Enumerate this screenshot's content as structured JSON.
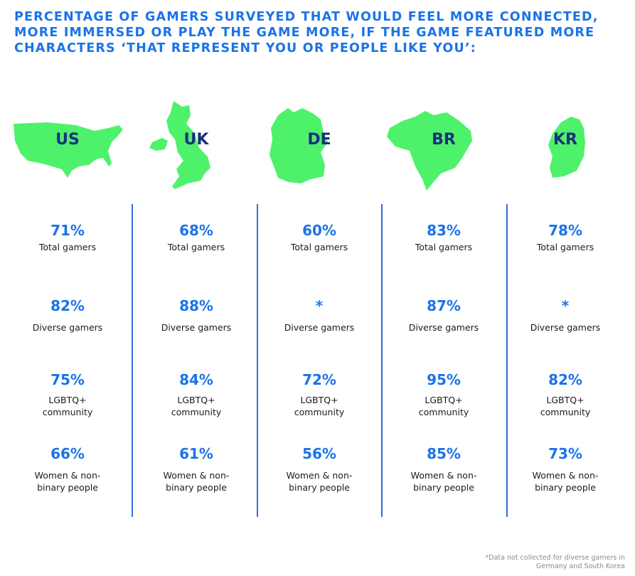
{
  "title": "PERCENTAGE OF GAMERS SURVEYED THAT WOULD FEEL MORE CONNECTED,\nMORE IMMERSED OR PLAY THE GAME MORE, IF THE GAME FEATURED MORE\nCHARACTERS ‘THAT REPRESENT YOU OR PEOPLE LIKE YOU’:",
  "map_color": "#4ef26a",
  "value_color": "#1a73e8",
  "code_color": "#18307c",
  "chart_data": {
    "type": "table",
    "title": "PERCENTAGE OF GAMERS SURVEYED THAT WOULD FEEL MORE CONNECTED, MORE IMMERSED OR PLAY THE GAME MORE, IF THE GAME FEATURED MORE CHARACTERS ‘THAT REPRESENT YOU OR PEOPLE LIKE YOU’:",
    "categories": [
      "US",
      "UK",
      "DE",
      "BR",
      "KR"
    ],
    "rows": [
      "Total gamers",
      "Diverse gamers",
      "LGBTQ+ community",
      "Women & non-binary people"
    ],
    "columns": [
      {
        "code": "US",
        "map_icon": "us-map-icon",
        "values": {
          "total": "71%",
          "diverse": "82%",
          "lgbtq": "75%",
          "women": "66%"
        }
      },
      {
        "code": "UK",
        "map_icon": "uk-map-icon",
        "values": {
          "total": "68%",
          "diverse": "88%",
          "lgbtq": "84%",
          "women": "61%"
        }
      },
      {
        "code": "DE",
        "map_icon": "de-map-icon",
        "values": {
          "total": "60%",
          "diverse": "*",
          "lgbtq": "72%",
          "women": "56%"
        }
      },
      {
        "code": "BR",
        "map_icon": "br-map-icon",
        "values": {
          "total": "83%",
          "diverse": "87%",
          "lgbtq": "95%",
          "women": "85%"
        }
      },
      {
        "code": "KR",
        "map_icon": "kr-map-icon",
        "values": {
          "total": "78%",
          "diverse": "*",
          "lgbtq": "82%",
          "women": "73%"
        }
      }
    ],
    "labels": {
      "total": "Total gamers",
      "diverse": "Diverse gamers",
      "lgbtq": "LGBTQ+ community",
      "women": "Women & non-binary people"
    }
  },
  "footnote": "*Data not collected for diverse gamers in Germany and South Korea"
}
